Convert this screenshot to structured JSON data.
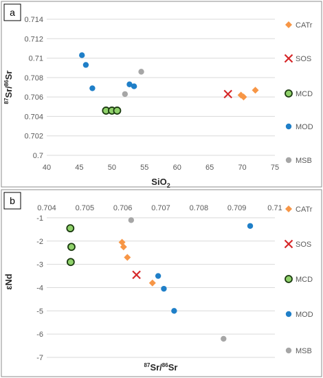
{
  "colors": {
    "CATr": "#f79646",
    "SOS": "#d62728",
    "MCD_fill": "#8fd16a",
    "MCD_edge": "#1b3a10",
    "MOD": "#1f7fc8",
    "MSB": "#a6a6a6"
  },
  "chart_data": [
    {
      "panel_label": "a",
      "type": "scatter",
      "xlabel": "SiO",
      "xlabel_sub": "2",
      "ylabel_parts": [
        "87",
        "Sr/",
        "86",
        "Sr"
      ],
      "xlim": [
        40,
        75
      ],
      "ylim": [
        0.7,
        0.714
      ],
      "x_ticks": [
        40,
        45,
        50,
        55,
        60,
        65,
        70,
        75
      ],
      "x_tick_labels": [
        "40",
        "45",
        "50",
        "55",
        "60",
        "65",
        "70",
        "75"
      ],
      "y_ticks": [
        0.7,
        0.702,
        0.704,
        0.706,
        0.708,
        0.71,
        0.712,
        0.714
      ],
      "y_tick_labels": [
        "0.7",
        "0.702",
        "0.704",
        "0.706",
        "0.708",
        "0.71",
        "0.712",
        "0.714"
      ],
      "legend": [
        "CATr",
        "SOS",
        "MCD",
        "MOD",
        "MSB"
      ],
      "series": [
        {
          "name": "CATr",
          "marker": "diamond",
          "points": [
            [
              69.8,
              0.7062
            ],
            [
              70.2,
              0.706
            ],
            [
              72.0,
              0.7067
            ]
          ]
        },
        {
          "name": "SOS",
          "marker": "x",
          "points": [
            [
              67.8,
              0.7063
            ]
          ]
        },
        {
          "name": "MCD",
          "marker": "circle-outline",
          "points": [
            [
              49.1,
              0.7046
            ],
            [
              50.0,
              0.7046
            ],
            [
              50.8,
              0.7046
            ]
          ]
        },
        {
          "name": "MOD",
          "marker": "circle",
          "points": [
            [
              45.4,
              0.7103
            ],
            [
              46.0,
              0.7093
            ],
            [
              47.0,
              0.7069
            ],
            [
              52.7,
              0.7073
            ],
            [
              53.4,
              0.7071
            ]
          ]
        },
        {
          "name": "MSB",
          "marker": "circle",
          "points": [
            [
              52.0,
              0.7063
            ],
            [
              54.5,
              0.7086
            ]
          ]
        }
      ]
    },
    {
      "panel_label": "b",
      "type": "scatter",
      "xlabel_parts": [
        "87",
        "Sr/",
        "86",
        "Sr"
      ],
      "ylabel": "εNd",
      "xlim": [
        0.704,
        0.71
      ],
      "ylim": [
        -7,
        -0.5
      ],
      "x_ticks": [
        0.704,
        0.705,
        0.706,
        0.707,
        0.708,
        0.709,
        0.71
      ],
      "x_tick_labels": [
        "0.704",
        "0.705",
        "0.706",
        "0.707",
        "0.708",
        "0.709",
        "0.71"
      ],
      "y_ticks": [
        -1,
        -2,
        -3,
        -4,
        -5,
        -6,
        -7
      ],
      "y_tick_labels": [
        "-1",
        "-2",
        "-3",
        "-4",
        "-5",
        "-6",
        "-7"
      ],
      "legend": [
        "CATr",
        "SOS",
        "MCD",
        "MOD",
        "MSB"
      ],
      "series": [
        {
          "name": "CATr",
          "marker": "diamond",
          "points": [
            [
              0.70598,
              -2.05
            ],
            [
              0.70602,
              -2.25
            ],
            [
              0.70612,
              -2.7
            ],
            [
              0.70678,
              -3.8
            ]
          ]
        },
        {
          "name": "SOS",
          "marker": "x",
          "points": [
            [
              0.70636,
              -3.45
            ]
          ]
        },
        {
          "name": "MCD",
          "marker": "circle-outline",
          "points": [
            [
              0.70462,
              -1.45
            ],
            [
              0.70465,
              -2.25
            ],
            [
              0.70463,
              -2.9
            ]
          ]
        },
        {
          "name": "MOD",
          "marker": "circle",
          "points": [
            [
              0.70693,
              -3.5
            ],
            [
              0.70708,
              -4.05
            ],
            [
              0.70735,
              -5.0
            ],
            [
              0.70935,
              -1.35
            ]
          ]
        },
        {
          "name": "MSB",
          "marker": "circle",
          "points": [
            [
              0.70622,
              -1.1
            ],
            [
              0.70865,
              -6.2
            ]
          ]
        }
      ]
    }
  ]
}
